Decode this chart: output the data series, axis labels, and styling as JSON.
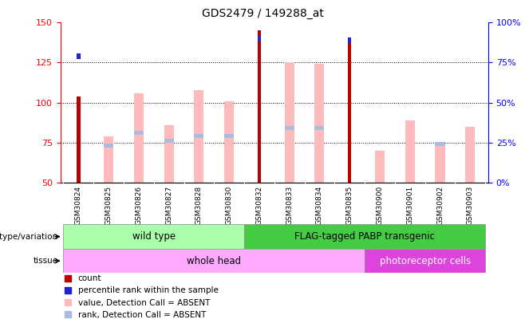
{
  "title": "GDS2479 / 149288_at",
  "samples": [
    "GSM30824",
    "GSM30825",
    "GSM30826",
    "GSM30827",
    "GSM30828",
    "GSM30830",
    "GSM30832",
    "GSM30833",
    "GSM30834",
    "GSM30835",
    "GSM30900",
    "GSM30901",
    "GSM30902",
    "GSM30903"
  ],
  "count": [
    104,
    null,
    null,
    null,
    null,
    null,
    145,
    null,
    null,
    138,
    null,
    null,
    null,
    null
  ],
  "percentile_rank": [
    79,
    null,
    null,
    null,
    null,
    null,
    90,
    null,
    null,
    89,
    null,
    null,
    null,
    null
  ],
  "value_absent": [
    null,
    79,
    106,
    86,
    108,
    101,
    null,
    125,
    124,
    null,
    70,
    89,
    74,
    85
  ],
  "rank_absent": [
    null,
    73,
    81,
    76,
    79,
    79,
    null,
    84,
    84,
    null,
    null,
    null,
    74,
    null
  ],
  "ylim_left": [
    50,
    150
  ],
  "ylim_right": [
    0,
    100
  ],
  "yticks_left": [
    50,
    75,
    100,
    125,
    150
  ],
  "yticks_right": [
    0,
    25,
    50,
    75,
    100
  ],
  "count_color": "#bb0000",
  "percentile_color": "#2222cc",
  "value_absent_color": "#ffbbbb",
  "rank_absent_color": "#aabbdd",
  "genotype_wild": {
    "label": "wild type",
    "color": "#aaffaa",
    "start": 0,
    "end": 6
  },
  "genotype_flag": {
    "label": "FLAG-tagged PABP transgenic",
    "color": "#44cc44",
    "start": 6,
    "end": 14
  },
  "tissue_whole": {
    "label": "whole head",
    "color": "#ffaaff",
    "start": 0,
    "end": 10
  },
  "tissue_photo": {
    "label": "photoreceptor cells",
    "color": "#dd44dd",
    "start": 10,
    "end": 14
  },
  "legend_items": [
    "count",
    "percentile rank within the sample",
    "value, Detection Call = ABSENT",
    "rank, Detection Call = ABSENT"
  ],
  "legend_colors": [
    "#bb0000",
    "#2222cc",
    "#ffbbbb",
    "#aabbdd"
  ],
  "thin_bar_width": 0.12,
  "wide_bar_width": 0.32
}
